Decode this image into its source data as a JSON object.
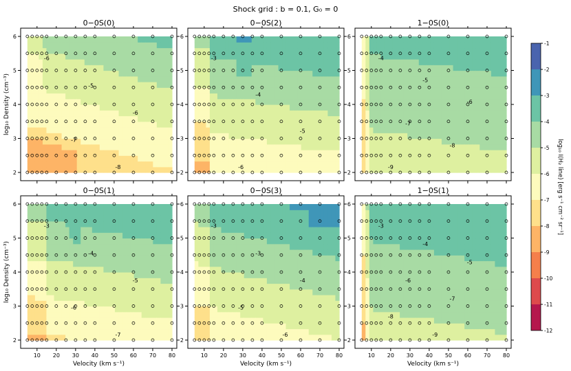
{
  "figure": {
    "title": "Shock grid : b = 0.1, G₀ = 0",
    "xlabel": "Velocity (km s⁻¹)",
    "ylabel": "log₁₀ Density (cm⁻³)",
    "colorbar_label": "log₁₀ I(H₂ line) [erg s⁻¹ cm⁻² sr⁻¹]"
  },
  "chart_data": [
    {
      "type": "contour",
      "title": "0−0S(0)",
      "xlim": [
        4,
        80
      ],
      "ylim": [
        2,
        6
      ],
      "xticks": [
        10,
        20,
        30,
        40,
        50,
        60,
        70,
        80
      ],
      "yticks": [
        2,
        3,
        4,
        5,
        6
      ],
      "contour_labels": [
        "-6",
        "-5",
        "-6",
        "-7",
        "-8"
      ],
      "samples": [
        {
          "v": 5,
          "n": 6,
          "logI": -6.2
        },
        {
          "v": 15,
          "n": 2.5,
          "logI": -7.5
        },
        {
          "v": 30,
          "n": 4.6,
          "logI": -5.1
        },
        {
          "v": 50,
          "n": 6,
          "logI": -4.8
        },
        {
          "v": 60,
          "n": 2,
          "logI": -8.0
        },
        {
          "v": 80,
          "n": 3.5,
          "logI": -6.0
        }
      ]
    },
    {
      "type": "contour",
      "title": "0−0S(2)",
      "xlim": [
        4,
        80
      ],
      "ylim": [
        2,
        6
      ],
      "xticks": [
        10,
        20,
        30,
        40,
        50,
        60,
        70,
        80
      ],
      "yticks": [
        2,
        3,
        4,
        5,
        6
      ],
      "contour_labels": [
        "-3",
        "-4",
        "-5",
        "-6"
      ],
      "samples": [
        {
          "v": 30,
          "n": 5.2,
          "logI": -3.2
        },
        {
          "v": 50,
          "n": 5,
          "logI": -3.9
        },
        {
          "v": 40,
          "n": 3.7,
          "logI": -4.8
        },
        {
          "v": 40,
          "n": 3,
          "logI": -5.5
        },
        {
          "v": 10,
          "n": 2,
          "logI": -6.3
        }
      ]
    },
    {
      "type": "contour",
      "title": "1−0S(0)",
      "xlim": [
        4,
        80
      ],
      "ylim": [
        2,
        6
      ],
      "xticks": [
        10,
        20,
        30,
        40,
        50,
        60,
        70,
        80
      ],
      "yticks": [
        2,
        3,
        4,
        5,
        6
      ],
      "contour_labels": [
        "-4",
        "-5",
        "-6",
        "-7",
        "-8",
        "-9"
      ],
      "samples": [
        {
          "v": 20,
          "n": 5.5,
          "logI": -3.7
        },
        {
          "v": 50,
          "n": 4.5,
          "logI": -4.5
        },
        {
          "v": 60,
          "n": 2.5,
          "logI": -5.8
        },
        {
          "v": 5,
          "n": 2,
          "logI": -9.3
        }
      ]
    },
    {
      "type": "contour",
      "title": "0−0S(1)",
      "xlim": [
        4,
        80
      ],
      "ylim": [
        2,
        6
      ],
      "xticks": [
        10,
        20,
        30,
        40,
        50,
        60,
        70,
        80
      ],
      "yticks": [
        2,
        3,
        4,
        5,
        6
      ],
      "contour_labels": [
        "-3",
        "-4",
        "-5",
        "-6",
        "-7"
      ],
      "samples": [
        {
          "v": 30,
          "n": 5.2,
          "logI": -3.3
        },
        {
          "v": 55,
          "n": 5.5,
          "logI": -3.8
        },
        {
          "v": 40,
          "n": 3.5,
          "logI": -4.7
        },
        {
          "v": 50,
          "n": 2.6,
          "logI": -6.5
        },
        {
          "v": 70,
          "n": 2,
          "logI": -7.2
        }
      ]
    },
    {
      "type": "contour",
      "title": "0−0S(3)",
      "xlim": [
        4,
        80
      ],
      "ylim": [
        2,
        6
      ],
      "xticks": [
        10,
        20,
        30,
        40,
        50,
        60,
        70,
        80
      ],
      "yticks": [
        2,
        3,
        4,
        5,
        6
      ],
      "contour_labels": [
        "-3",
        "-3",
        "-4",
        "-5",
        "-6"
      ],
      "samples": [
        {
          "v": 30,
          "n": 5.2,
          "logI": -3.2
        },
        {
          "v": 75,
          "n": 5.8,
          "logI": -2.9
        },
        {
          "v": 50,
          "n": 4.5,
          "logI": -3.7
        },
        {
          "v": 40,
          "n": 3.5,
          "logI": -4.6
        },
        {
          "v": 20,
          "n": 2,
          "logI": -6.3
        }
      ]
    },
    {
      "type": "contour",
      "title": "1−0S(1)",
      "xlim": [
        4,
        80
      ],
      "ylim": [
        2,
        6
      ],
      "xticks": [
        10,
        20,
        30,
        40,
        50,
        60,
        70,
        80
      ],
      "yticks": [
        2,
        3,
        4,
        5,
        6
      ],
      "contour_labels": [
        "-3",
        "-4",
        "-5",
        "-6",
        "-7",
        "-8",
        "-9"
      ],
      "samples": [
        {
          "v": 20,
          "n": 5.6,
          "logI": -3.2
        },
        {
          "v": 55,
          "n": 5,
          "logI": -3.6
        },
        {
          "v": 40,
          "n": 3,
          "logI": -4.5
        },
        {
          "v": 5,
          "n": 2,
          "logI": -9.2
        }
      ]
    }
  ],
  "colorbar": {
    "min": -12,
    "max": -1,
    "ticks": [
      "-1",
      "-2",
      "-3",
      "-4",
      "-5",
      "-6",
      "-7",
      "-8",
      "-9",
      "-10",
      "-11",
      "-12"
    ],
    "levels": [
      {
        "from": -2,
        "to": -1,
        "color": "#4a64ae"
      },
      {
        "from": -3,
        "to": -2,
        "color": "#3f96b8"
      },
      {
        "from": -4,
        "to": -3,
        "color": "#6cc4a5"
      },
      {
        "from": -5,
        "to": -4,
        "color": "#a8dba4"
      },
      {
        "from": -6,
        "to": -5,
        "color": "#def0a0"
      },
      {
        "from": -7,
        "to": -6,
        "color": "#fdfbbd"
      },
      {
        "from": -8,
        "to": -7,
        "color": "#fee08b"
      },
      {
        "from": -9,
        "to": -8,
        "color": "#fdb466"
      },
      {
        "from": -10,
        "to": -9,
        "color": "#f57f4b"
      },
      {
        "from": -11,
        "to": -10,
        "color": "#dd4a4c"
      },
      {
        "from": -12,
        "to": -11,
        "color": "#b5174d"
      }
    ]
  }
}
